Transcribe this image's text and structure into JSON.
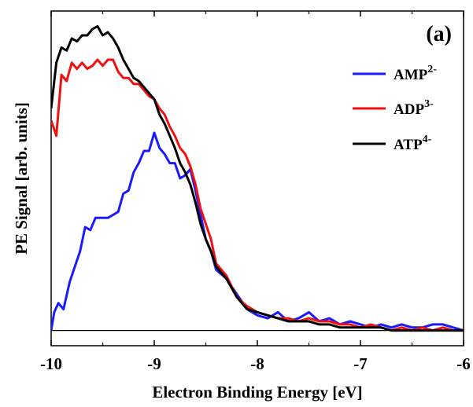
{
  "chart_data": {
    "type": "line",
    "panel_label": "(a)",
    "xlabel": "Electron Binding Energy [eV]",
    "ylabel": "PE Signal [arb. units]",
    "xlim": [
      -10,
      -6
    ],
    "xticks": [
      "-10",
      "-9",
      "-8",
      "-7",
      "-6"
    ],
    "ylim": [
      -0.05,
      1.05
    ],
    "baseline": 0,
    "legend_position": "top-right",
    "series": [
      {
        "name": "AMP",
        "charge": "2-",
        "color": "#1a1aff",
        "x": [
          -10.0,
          -9.97,
          -9.93,
          -9.88,
          -9.82,
          -9.78,
          -9.72,
          -9.67,
          -9.62,
          -9.57,
          -9.52,
          -9.45,
          -9.4,
          -9.35,
          -9.3,
          -9.25,
          -9.2,
          -9.15,
          -9.1,
          -9.05,
          -9.0,
          -8.95,
          -8.9,
          -8.85,
          -8.8,
          -8.75,
          -8.7,
          -8.65,
          -8.6,
          -8.55,
          -8.5,
          -8.45,
          -8.4,
          -8.3,
          -8.2,
          -8.1,
          -8.0,
          -7.9,
          -7.8,
          -7.7,
          -7.6,
          -7.5,
          -7.4,
          -7.3,
          -7.2,
          -7.1,
          -7.0,
          -6.9,
          -6.8,
          -6.7,
          -6.6,
          -6.5,
          -6.4,
          -6.3,
          -6.2,
          -6.1,
          -6.0
        ],
        "y": [
          0.0,
          0.06,
          0.09,
          0.07,
          0.16,
          0.2,
          0.26,
          0.34,
          0.33,
          0.37,
          0.37,
          0.37,
          0.38,
          0.39,
          0.45,
          0.46,
          0.52,
          0.55,
          0.59,
          0.59,
          0.65,
          0.6,
          0.58,
          0.55,
          0.55,
          0.5,
          0.51,
          0.53,
          0.46,
          0.38,
          0.3,
          0.26,
          0.2,
          0.17,
          0.12,
          0.07,
          0.05,
          0.04,
          0.06,
          0.03,
          0.04,
          0.06,
          0.03,
          0.04,
          0.02,
          0.03,
          0.02,
          0.01,
          0.02,
          0.01,
          0.02,
          0.01,
          0.01,
          0.02,
          0.02,
          0.01,
          0.0
        ]
      },
      {
        "name": "ADP",
        "charge": "3-",
        "color": "#ee1111",
        "x": [
          -10.0,
          -9.95,
          -9.9,
          -9.85,
          -9.8,
          -9.75,
          -9.7,
          -9.65,
          -9.6,
          -9.55,
          -9.5,
          -9.45,
          -9.4,
          -9.35,
          -9.3,
          -9.25,
          -9.2,
          -9.15,
          -9.1,
          -9.05,
          -9.0,
          -8.95,
          -8.9,
          -8.85,
          -8.8,
          -8.75,
          -8.7,
          -8.65,
          -8.6,
          -8.55,
          -8.5,
          -8.45,
          -8.4,
          -8.3,
          -8.2,
          -8.1,
          -8.0,
          -7.9,
          -7.8,
          -7.7,
          -7.6,
          -7.5,
          -7.4,
          -7.3,
          -7.2,
          -7.1,
          -7.0,
          -6.9,
          -6.8,
          -6.7,
          -6.6,
          -6.5,
          -6.4,
          -6.3,
          -6.2,
          -6.1,
          -6.0
        ],
        "y": [
          0.69,
          0.64,
          0.84,
          0.82,
          0.88,
          0.86,
          0.88,
          0.86,
          0.87,
          0.89,
          0.87,
          0.89,
          0.89,
          0.85,
          0.83,
          0.83,
          0.81,
          0.81,
          0.79,
          0.77,
          0.76,
          0.73,
          0.71,
          0.67,
          0.64,
          0.6,
          0.58,
          0.54,
          0.48,
          0.4,
          0.35,
          0.3,
          0.22,
          0.18,
          0.11,
          0.08,
          0.06,
          0.05,
          0.04,
          0.04,
          0.03,
          0.04,
          0.03,
          0.03,
          0.02,
          0.02,
          0.01,
          0.02,
          0.01,
          0.0,
          0.01,
          0.0,
          0.01,
          0.0,
          0.01,
          0.0,
          0.0
        ]
      },
      {
        "name": "ATP",
        "charge": "4-",
        "color": "#000000",
        "x": [
          -10.0,
          -9.95,
          -9.9,
          -9.85,
          -9.8,
          -9.75,
          -9.7,
          -9.65,
          -9.6,
          -9.55,
          -9.5,
          -9.45,
          -9.4,
          -9.35,
          -9.3,
          -9.25,
          -9.2,
          -9.15,
          -9.1,
          -9.05,
          -9.0,
          -8.95,
          -8.9,
          -8.85,
          -8.8,
          -8.75,
          -8.7,
          -8.65,
          -8.6,
          -8.55,
          -8.5,
          -8.45,
          -8.4,
          -8.3,
          -8.2,
          -8.1,
          -8.0,
          -7.9,
          -7.8,
          -7.7,
          -7.6,
          -7.5,
          -7.4,
          -7.3,
          -7.2,
          -7.1,
          -7.0,
          -6.9,
          -6.8,
          -6.7,
          -6.6,
          -6.5,
          -6.4,
          -6.3,
          -6.2,
          -6.1,
          -6.0
        ],
        "y": [
          0.73,
          0.88,
          0.93,
          0.92,
          0.96,
          0.95,
          0.97,
          0.97,
          0.99,
          1.0,
          0.97,
          0.98,
          0.96,
          0.93,
          0.89,
          0.86,
          0.83,
          0.82,
          0.8,
          0.78,
          0.76,
          0.71,
          0.68,
          0.64,
          0.6,
          0.55,
          0.52,
          0.48,
          0.42,
          0.35,
          0.3,
          0.26,
          0.21,
          0.17,
          0.11,
          0.07,
          0.06,
          0.05,
          0.04,
          0.03,
          0.03,
          0.03,
          0.02,
          0.02,
          0.01,
          0.01,
          0.01,
          0.01,
          0.01,
          0.0,
          0.0,
          0.0,
          0.0,
          0.0,
          0.0,
          0.0,
          0.0
        ]
      }
    ]
  }
}
